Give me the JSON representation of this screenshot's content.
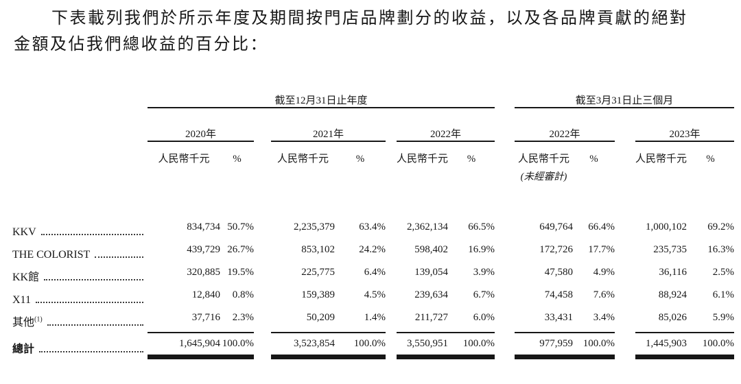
{
  "paragraph": {
    "line1": "下表載列我們於所示年度及期間按門店品牌劃分的收益，以及各品牌貢獻的絕對",
    "line2": "金額及佔我們總收益的百分比："
  },
  "table": {
    "period_groups": [
      {
        "label": "截至12月31日止年度",
        "years": [
          "2020年",
          "2021年",
          "2022年"
        ]
      },
      {
        "label": "截至3月31日止三個月",
        "years": [
          "2022年",
          "2023年"
        ]
      }
    ],
    "unit_header": "人民幣千元",
    "percent_header": "%",
    "unaudited_note": "(未經審計)",
    "rows": [
      {
        "label": "KKV",
        "sup": "",
        "values": [
          [
            "834,734",
            "50.7%"
          ],
          [
            "2,235,379",
            "63.4%"
          ],
          [
            "2,362,134",
            "66.5%"
          ],
          [
            "649,764",
            "66.4%"
          ],
          [
            "1,000,102",
            "69.2%"
          ]
        ]
      },
      {
        "label": "THE COLORIST",
        "sup": "",
        "values": [
          [
            "439,729",
            "26.7%"
          ],
          [
            "853,102",
            "24.2%"
          ],
          [
            "598,402",
            "16.9%"
          ],
          [
            "172,726",
            "17.7%"
          ],
          [
            "235,735",
            "16.3%"
          ]
        ]
      },
      {
        "label": "KK館",
        "sup": "",
        "values": [
          [
            "320,885",
            "19.5%"
          ],
          [
            "225,775",
            "6.4%"
          ],
          [
            "139,054",
            "3.9%"
          ],
          [
            "47,580",
            "4.9%"
          ],
          [
            "36,116",
            "2.5%"
          ]
        ]
      },
      {
        "label": "X11",
        "sup": "",
        "values": [
          [
            "12,840",
            "0.8%"
          ],
          [
            "159,389",
            "4.5%"
          ],
          [
            "239,634",
            "6.7%"
          ],
          [
            "74,458",
            "7.6%"
          ],
          [
            "88,924",
            "6.1%"
          ]
        ]
      },
      {
        "label": "其他",
        "sup": "(1)",
        "values": [
          [
            "37,716",
            "2.3%"
          ],
          [
            "50,209",
            "1.4%"
          ],
          [
            "211,727",
            "6.0%"
          ],
          [
            "33,431",
            "3.4%"
          ],
          [
            "85,026",
            "5.9%"
          ]
        ]
      }
    ],
    "total": {
      "label": "總計",
      "values": [
        [
          "1,645,904",
          "100.0%"
        ],
        [
          "3,523,854",
          "100.0%"
        ],
        [
          "3,550,951",
          "100.0%"
        ],
        [
          "977,959",
          "100.0%"
        ],
        [
          "1,445,903",
          "100.0%"
        ]
      ]
    }
  }
}
